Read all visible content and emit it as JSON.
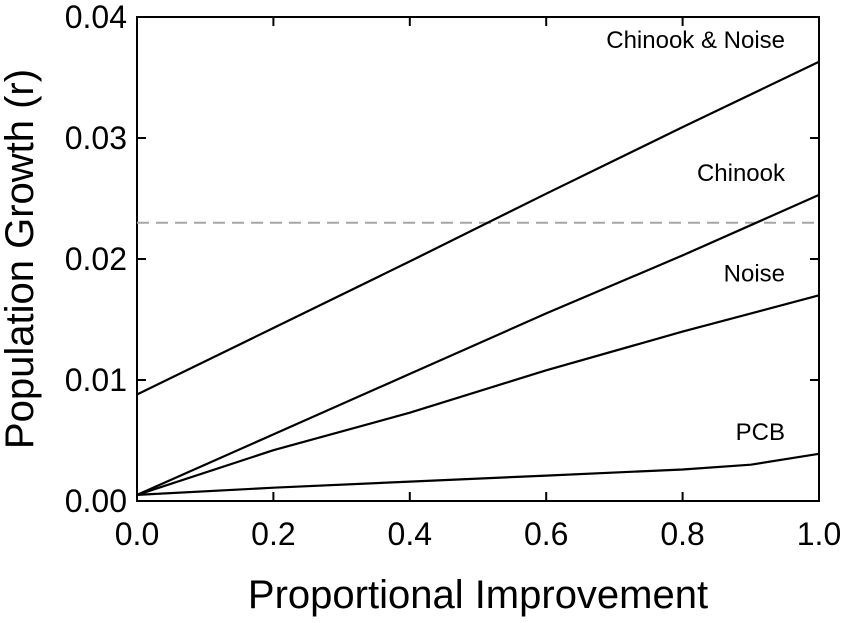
{
  "chart_data": {
    "type": "line",
    "xlabel": "Proportional Improvement",
    "ylabel": "Population Growth (r)",
    "xlim": [
      0.0,
      1.0
    ],
    "ylim": [
      0.0,
      0.04
    ],
    "xticks": [
      "0.0",
      "0.2",
      "0.4",
      "0.6",
      "0.8",
      "1.0"
    ],
    "yticks": [
      "0.00",
      "0.01",
      "0.02",
      "0.03",
      "0.04"
    ],
    "grid": false,
    "reference_line": {
      "y": 0.023,
      "style": "dashed",
      "color": "#a6a6a6"
    },
    "series": [
      {
        "name": "Chinook & Noise",
        "x": [
          0.0,
          0.2,
          0.4,
          0.6,
          0.8,
          1.0
        ],
        "values": [
          0.0088,
          0.0143,
          0.0198,
          0.0254,
          0.0309,
          0.0363
        ]
      },
      {
        "name": "Chinook",
        "x": [
          0.0,
          0.2,
          0.4,
          0.6,
          0.8,
          1.0
        ],
        "values": [
          0.0005,
          0.0055,
          0.0105,
          0.0155,
          0.0203,
          0.0253
        ]
      },
      {
        "name": "Noise",
        "x": [
          0.0,
          0.2,
          0.4,
          0.6,
          0.8,
          1.0
        ],
        "values": [
          0.0005,
          0.0042,
          0.0073,
          0.0108,
          0.014,
          0.017
        ]
      },
      {
        "name": "PCB",
        "x": [
          0.0,
          0.2,
          0.4,
          0.6,
          0.8,
          0.9,
          1.0
        ],
        "values": [
          0.0005,
          0.0011,
          0.0016,
          0.0021,
          0.0026,
          0.003,
          0.0039
        ]
      }
    ]
  }
}
